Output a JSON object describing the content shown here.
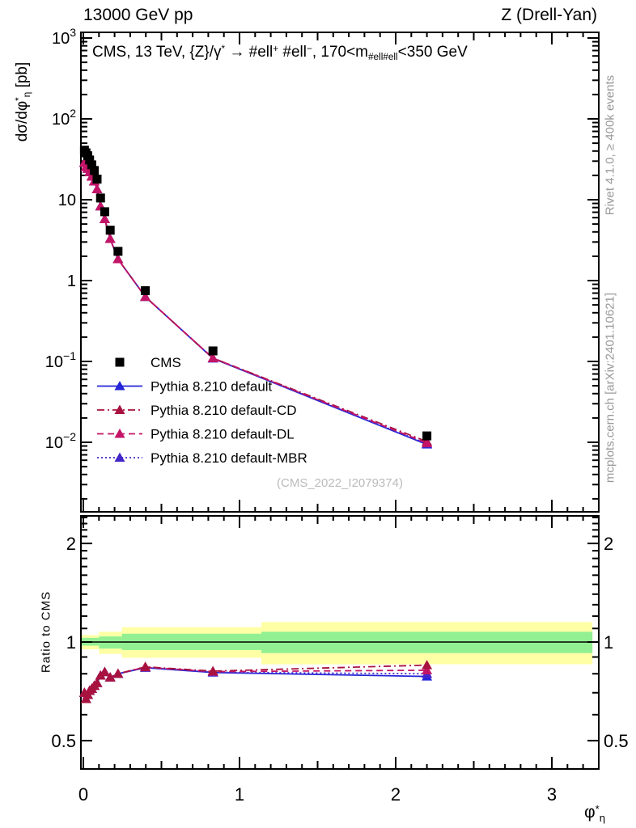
{
  "header": {
    "left": "13000 GeV pp",
    "right": "Z (Drell-Yan)"
  },
  "side_text_top": "Rivet 4.1.0, ≥ 400k events",
  "side_text_bottom": "mcplots.cern.ch [arXiv:2401.10621]",
  "watermark": "(CMS_2022_I2079374)",
  "colors": {
    "frame": "#000000",
    "band_yellow": "#ffffa6",
    "band_green": "#92f092",
    "side_text": "#999999",
    "watermark_text": "#bbbbbb"
  },
  "chart_data": {
    "type": "line",
    "title": "CMS, 13 TeV, {Z}/γ* →  #ell+ #ell-, 170<m#ell#ell<350 GeV",
    "title_segments": [
      {
        "t": "CMS, 13 TeV, {Z}/γ"
      },
      {
        "t": "*",
        "s": "sup"
      },
      {
        "t": " →  #ell"
      },
      {
        "t": "+",
        "s": "sup"
      },
      {
        "t": " #ell"
      },
      {
        "t": "−",
        "s": "sup"
      },
      {
        "t": ", 170<m"
      },
      {
        "t": "#ell#ell",
        "s": "sub"
      },
      {
        "t": "<350 GeV"
      }
    ],
    "ylabel_segments": [
      {
        "t": "dσ/dφ"
      },
      {
        "t": "*",
        "s": "sup"
      },
      {
        "t": "η",
        "s": "sub"
      },
      {
        "t": " [pb]"
      }
    ],
    "xlabel_segments": [
      {
        "t": "φ"
      },
      {
        "t": "*",
        "s": "sup"
      },
      {
        "t": "η",
        "s": "sub"
      }
    ],
    "ratio_ylabel": "Ratio to CMS",
    "x_axis": {
      "major": [
        0,
        1,
        2,
        3
      ],
      "medium_step": 0.5,
      "minor_step": 0.1,
      "range": [
        -0.016,
        3.3
      ]
    },
    "y_axis_main": {
      "scale": "log",
      "ylim": [
        0.00145,
        1175
      ],
      "ticks": [
        {
          "v": 1000,
          "base": "10",
          "exp": "3"
        },
        {
          "v": 100,
          "base": "10",
          "exp": "2"
        },
        {
          "v": 10,
          "base": "10",
          "exp": ""
        },
        {
          "v": 1,
          "base": "1",
          "exp": ""
        },
        {
          "v": 0.1,
          "base": "10",
          "exp": "−1"
        },
        {
          "v": 0.01,
          "base": "10",
          "exp": "−2"
        }
      ]
    },
    "y_axis_ratio": {
      "scale": "log",
      "ylim": [
        0.41,
        2.43
      ],
      "ticks": [
        {
          "v": 2,
          "label": "2"
        },
        {
          "v": 1,
          "label": "1"
        },
        {
          "v": 0.5,
          "label": "0.5"
        }
      ],
      "minor_from": 0.5,
      "minor_to": 2.4,
      "minor_step": 0.1
    },
    "x": [
      0.007,
      0.017,
      0.028,
      0.04,
      0.054,
      0.07,
      0.088,
      0.11,
      0.137,
      0.172,
      0.222,
      0.397,
      0.83,
      2.2
    ],
    "series": [
      {
        "key": "cms",
        "name": "CMS",
        "marker": "square",
        "color": "#000000",
        "line": null,
        "values": [
          41,
          38,
          35,
          31,
          27,
          23,
          18,
          10.5,
          7.1,
          4.2,
          2.3,
          0.75,
          0.135,
          0.012
        ]
      },
      {
        "key": "default",
        "name": "Pythia 8.210 default",
        "marker": "triangle",
        "color": "#2424d8",
        "line": "solid",
        "values": [
          28.7,
          25.5,
          24.2,
          22.0,
          19.4,
          16.9,
          13.5,
          8.3,
          5.75,
          3.28,
          1.84,
          0.63,
          0.109,
          0.0094
        ],
        "ratio": [
          0.7,
          0.67,
          0.69,
          0.71,
          0.72,
          0.735,
          0.75,
          0.79,
          0.81,
          0.78,
          0.8,
          0.835,
          0.807,
          0.785
        ]
      },
      {
        "key": "cd",
        "name": "Pythia 8.210 default-CD",
        "marker": "triangle",
        "color": "#a8123f",
        "line": "dashdot",
        "values": [
          28.7,
          25.5,
          24.2,
          22.0,
          19.4,
          16.9,
          13.5,
          8.3,
          5.75,
          3.28,
          1.84,
          0.63,
          0.11,
          0.0102
        ],
        "ratio": [
          0.7,
          0.67,
          0.69,
          0.71,
          0.72,
          0.735,
          0.75,
          0.79,
          0.81,
          0.78,
          0.8,
          0.84,
          0.815,
          0.85
        ]
      },
      {
        "key": "dl",
        "name": "Pythia 8.210 default-DL",
        "marker": "triangle",
        "color": "#c41467",
        "line": "dash",
        "values": [
          28.7,
          25.5,
          24.2,
          22.0,
          19.4,
          16.9,
          13.5,
          8.3,
          5.75,
          3.28,
          1.84,
          0.63,
          0.11,
          0.0098
        ],
        "ratio": [
          0.7,
          0.67,
          0.69,
          0.71,
          0.72,
          0.735,
          0.75,
          0.79,
          0.81,
          0.78,
          0.8,
          0.838,
          0.812,
          0.82
        ]
      },
      {
        "key": "mbr",
        "name": "Pythia 8.210 default-MBR",
        "marker": "triangle",
        "color": "#4326c9",
        "line": "dot",
        "values": [
          28.7,
          25.5,
          24.2,
          22.0,
          19.4,
          16.9,
          13.5,
          8.3,
          5.75,
          3.28,
          1.84,
          0.63,
          0.109,
          0.0096
        ],
        "ratio": [
          0.7,
          0.67,
          0.69,
          0.71,
          0.72,
          0.735,
          0.75,
          0.79,
          0.81,
          0.78,
          0.8,
          0.835,
          0.808,
          0.8
        ]
      }
    ],
    "bands": [
      {
        "x0": -0.016,
        "x1": 0.1,
        "yellow": [
          0.95,
          1.05
        ],
        "green": [
          0.975,
          1.03
        ]
      },
      {
        "x0": 0.1,
        "x1": 0.247,
        "yellow": [
          0.92,
          1.075
        ],
        "green": [
          0.955,
          1.04
        ]
      },
      {
        "x0": 0.247,
        "x1": 1.14,
        "yellow": [
          0.895,
          1.11
        ],
        "green": [
          0.945,
          1.06
        ]
      },
      {
        "x0": 1.14,
        "x1": 3.26,
        "yellow": [
          0.855,
          1.15
        ],
        "green": [
          0.925,
          1.075
        ]
      }
    ],
    "legend_position": "inside-left-middle",
    "grid": false
  }
}
